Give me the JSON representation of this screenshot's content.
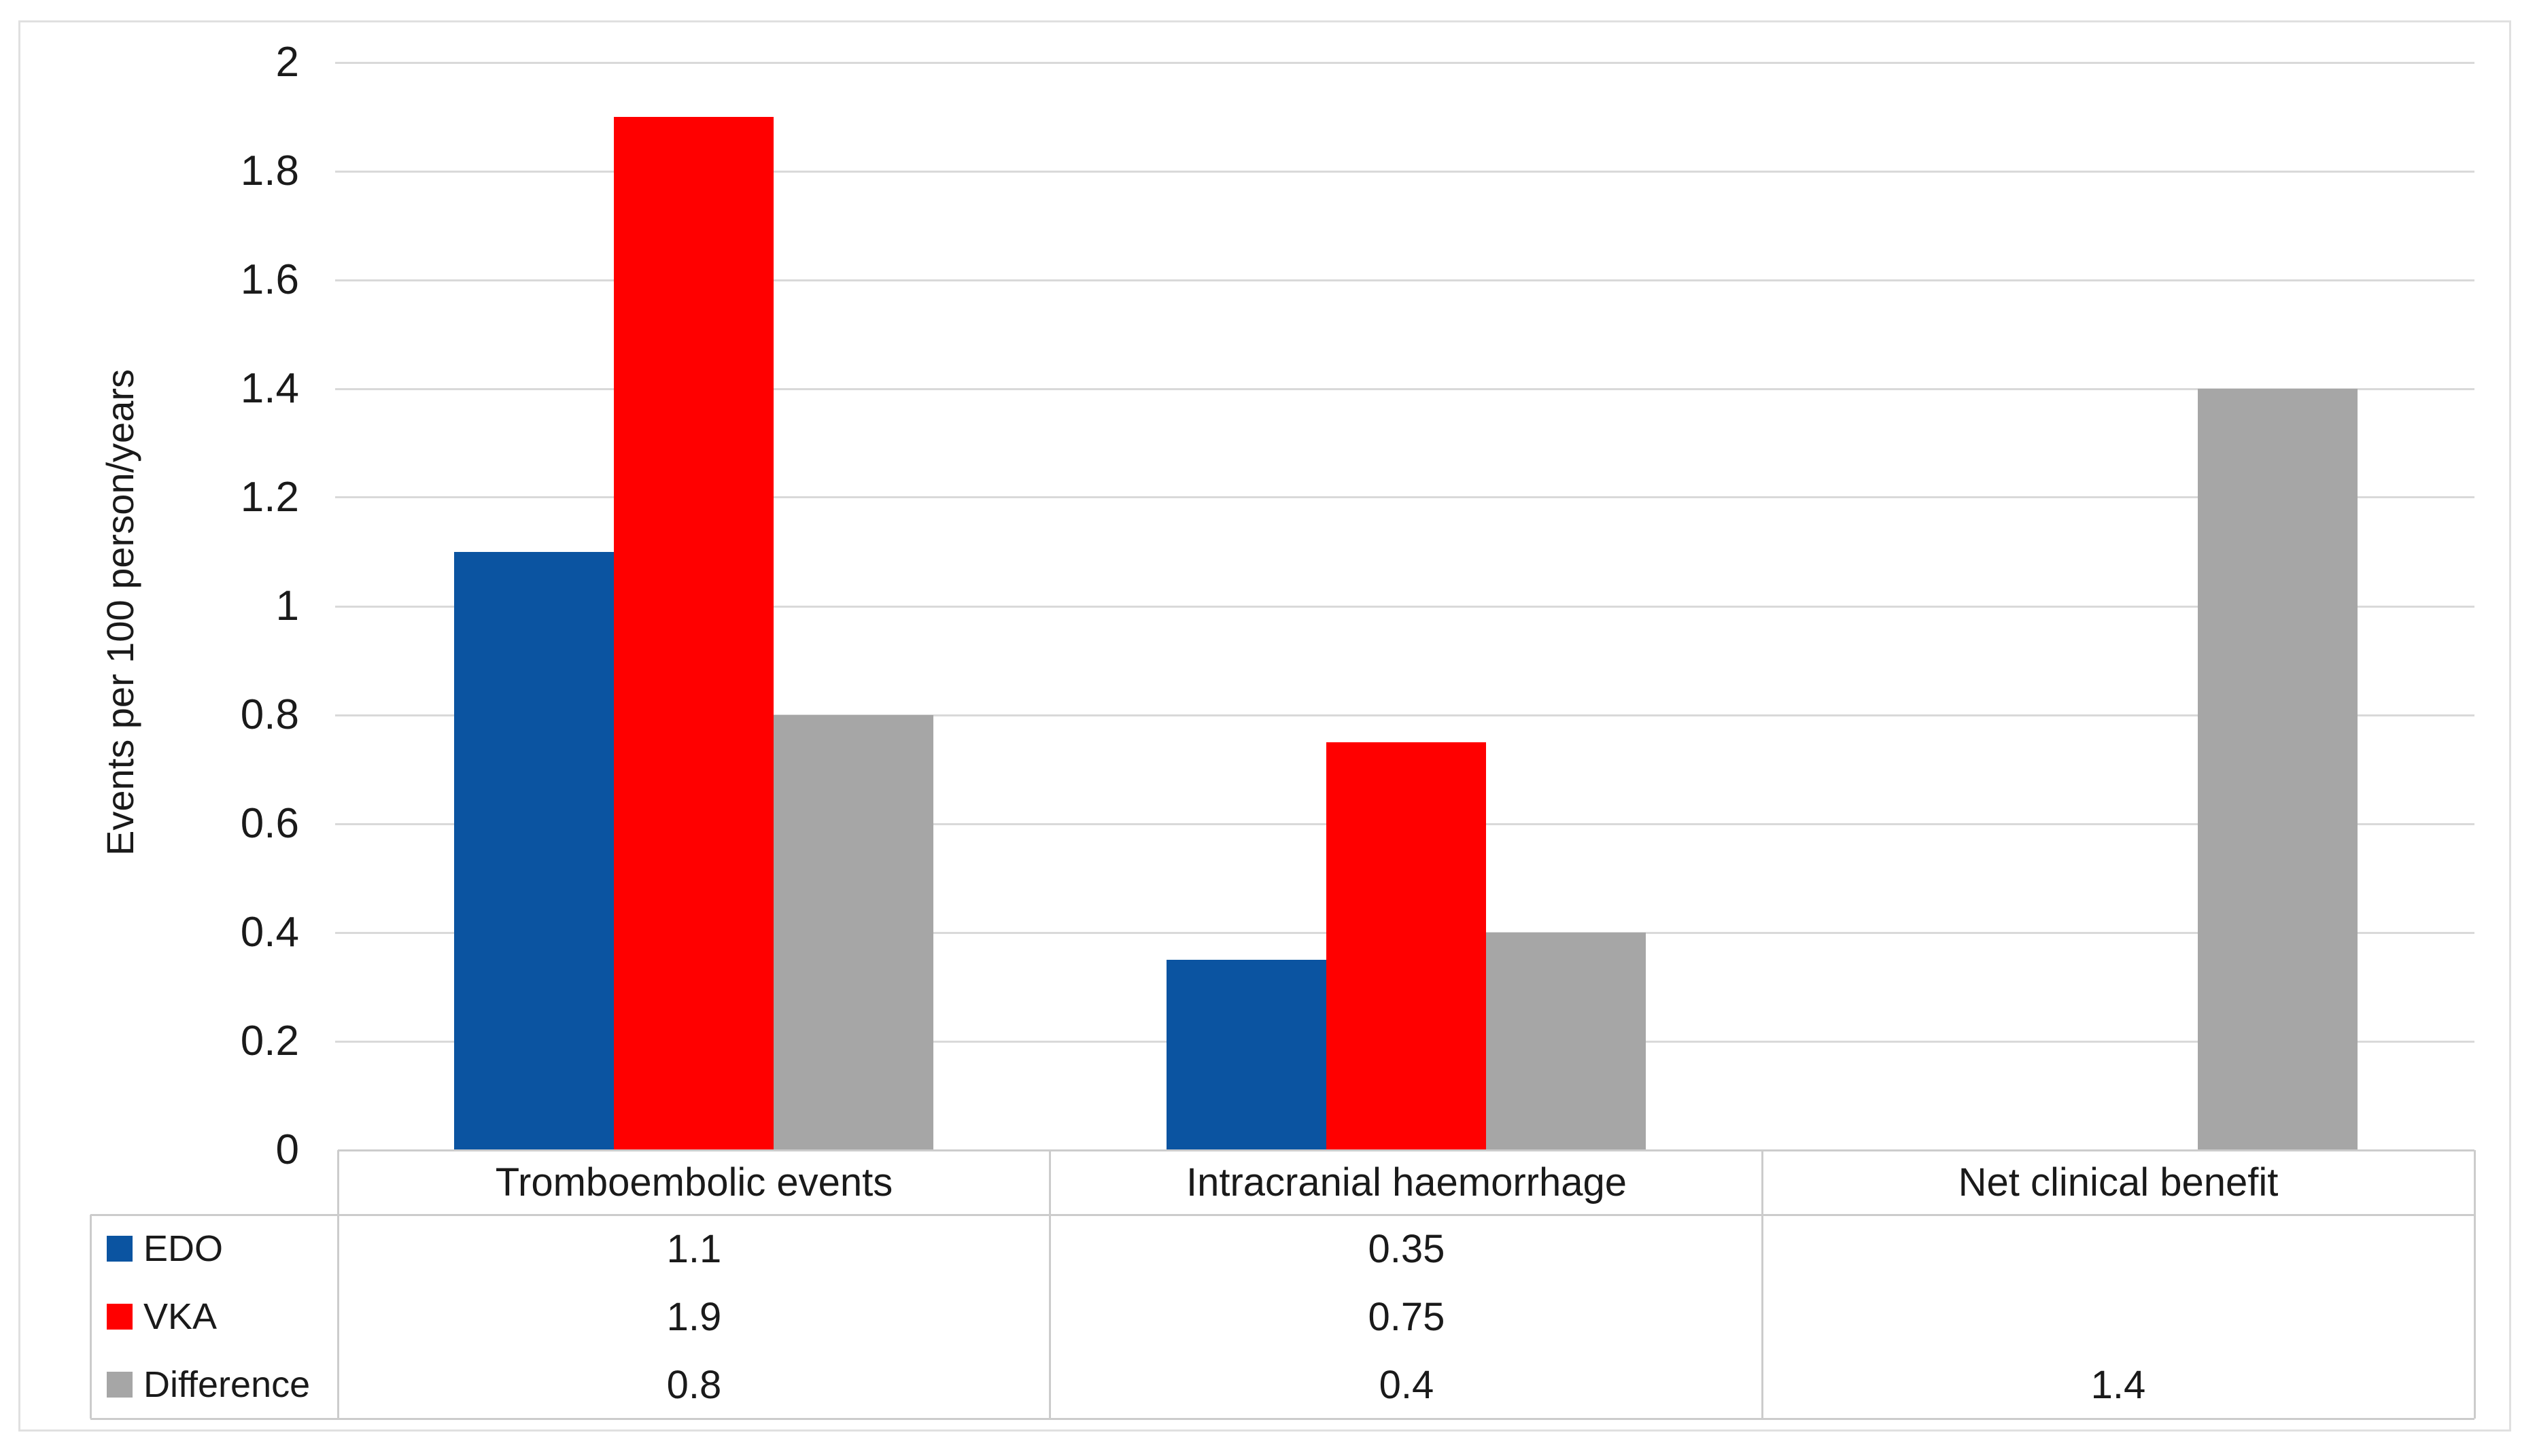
{
  "chart_data": {
    "type": "bar",
    "title": "",
    "xlabel": "",
    "ylabel": "Events per 100 person/years",
    "categories": [
      "Tromboembolic events",
      "Intracranial haemorrhage",
      "Net clinical benefit"
    ],
    "series": [
      {
        "name": "EDO",
        "color": "#0b54a1",
        "values": [
          1.1,
          0.35,
          null
        ]
      },
      {
        "name": "VKA",
        "color": "#ff0000",
        "values": [
          1.9,
          0.75,
          null
        ]
      },
      {
        "name": "Difference",
        "color": "#a6a6a6",
        "values": [
          0.8,
          0.4,
          1.4
        ]
      }
    ],
    "table_cells": [
      [
        "1.1",
        "0.35",
        ""
      ],
      [
        "1.9",
        "0.75",
        ""
      ],
      [
        "0.8",
        "0.4",
        "1.4"
      ]
    ],
    "ylim": [
      0,
      2
    ],
    "ytick_step": 0.2,
    "ytick_labels": [
      "0",
      "0.2",
      "0.4",
      "0.6",
      "0.8",
      "1",
      "1.2",
      "1.4",
      "1.6",
      "1.8",
      "2"
    ],
    "grid": true,
    "legend_position": "table-left-column"
  },
  "colors": {
    "background": "#ffffff",
    "gridline": "#d9d9d9",
    "table_border": "#cccccc",
    "outer_border": "#e0e0e0",
    "text": "#1a1a1a"
  }
}
